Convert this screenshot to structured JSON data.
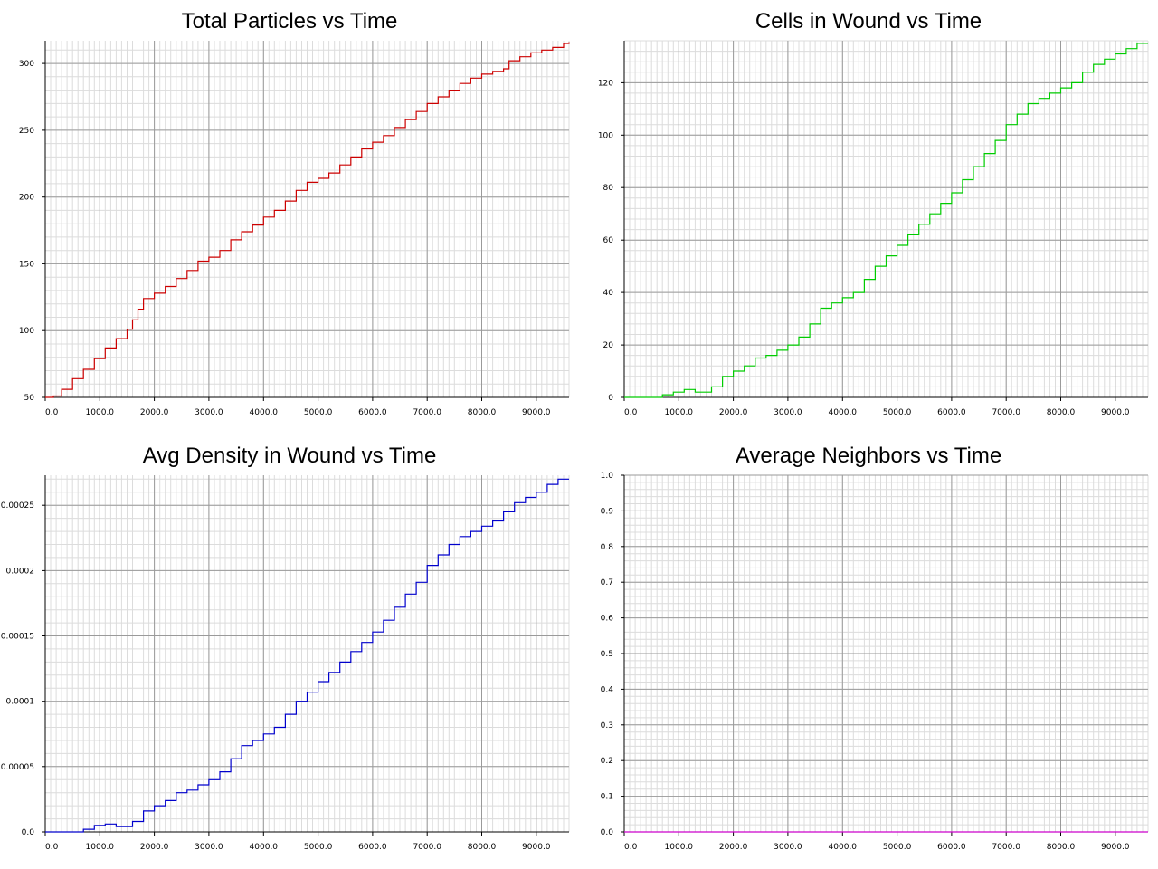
{
  "chart_data": [
    {
      "type": "line",
      "title": "Total Particles vs Time",
      "xlabel": "",
      "ylabel": "",
      "xlim": [
        0,
        9600
      ],
      "ylim": [
        50,
        317
      ],
      "x_ticks": [
        "0.0",
        "1000.0",
        "2000.0",
        "3000.0",
        "4000.0",
        "5000.0",
        "6000.0",
        "7000.0",
        "8000.0",
        "9000.0"
      ],
      "y_ticks": [
        "50",
        "100",
        "150",
        "200",
        "250",
        "300"
      ],
      "grid": true,
      "color": "#cc0000",
      "series": [
        {
          "x": [
            0,
            150,
            300,
            500,
            700,
            900,
            1100,
            1300,
            1500,
            1600,
            1700,
            1800,
            2000,
            2200,
            2400,
            2600,
            2800,
            3000,
            3200,
            3400,
            3600,
            3800,
            4000,
            4200,
            4400,
            4600,
            4800,
            5000,
            5200,
            5400,
            5600,
            5800,
            6000,
            6200,
            6400,
            6600,
            6800,
            7000,
            7200,
            7400,
            7600,
            7800,
            8000,
            8200,
            8400,
            8500,
            8700,
            8900,
            9100,
            9300,
            9500,
            9600
          ],
          "y": [
            50,
            51,
            56,
            64,
            71,
            79,
            87,
            94,
            101,
            108,
            116,
            124,
            128,
            133,
            139,
            145,
            152,
            155,
            160,
            168,
            174,
            179,
            185,
            190,
            197,
            205,
            211,
            214,
            218,
            224,
            230,
            236,
            241,
            246,
            252,
            258,
            264,
            270,
            275,
            280,
            285,
            289,
            292,
            294,
            296,
            302,
            305,
            308,
            310,
            312,
            315,
            316
          ]
        }
      ]
    },
    {
      "type": "line",
      "title": "Cells in Wound vs Time",
      "xlabel": "",
      "ylabel": "",
      "xlim": [
        0,
        9600
      ],
      "ylim": [
        0,
        136
      ],
      "x_ticks": [
        "0.0",
        "1000.0",
        "2000.0",
        "3000.0",
        "4000.0",
        "5000.0",
        "6000.0",
        "7000.0",
        "8000.0",
        "9000.0"
      ],
      "y_ticks": [
        "0",
        "20",
        "40",
        "60",
        "80",
        "100",
        "120"
      ],
      "grid": true,
      "color": "#00cc00",
      "series": [
        {
          "x": [
            0,
            400,
            700,
            900,
            1100,
            1300,
            1600,
            1800,
            2000,
            2200,
            2400,
            2600,
            2800,
            3000,
            3200,
            3400,
            3600,
            3800,
            4000,
            4200,
            4400,
            4600,
            4800,
            5000,
            5200,
            5400,
            5600,
            5800,
            6000,
            6200,
            6400,
            6600,
            6800,
            7000,
            7200,
            7400,
            7600,
            7800,
            8000,
            8200,
            8400,
            8600,
            8800,
            9000,
            9200,
            9400,
            9600
          ],
          "y": [
            0,
            0,
            1,
            2,
            3,
            2,
            4,
            8,
            10,
            12,
            15,
            16,
            18,
            20,
            23,
            28,
            34,
            36,
            38,
            40,
            45,
            50,
            54,
            58,
            62,
            66,
            70,
            74,
            78,
            83,
            88,
            93,
            98,
            104,
            108,
            112,
            114,
            116,
            118,
            120,
            124,
            127,
            129,
            131,
            133,
            135,
            135
          ]
        }
      ]
    },
    {
      "type": "line",
      "title": "Avg Density in Wound vs Time",
      "xlabel": "",
      "ylabel": "",
      "xlim": [
        0,
        9600
      ],
      "ylim": [
        0,
        0.000273
      ],
      "x_ticks": [
        "0.0",
        "1000.0",
        "2000.0",
        "3000.0",
        "4000.0",
        "5000.0",
        "6000.0",
        "7000.0",
        "8000.0",
        "9000.0"
      ],
      "y_ticks": [
        "0.0",
        "0.00005",
        "0.0001",
        "0.00015",
        "0.0002",
        "0.00025"
      ],
      "grid": true,
      "color": "#0000cc",
      "series": [
        {
          "x": [
            0,
            400,
            700,
            900,
            1100,
            1300,
            1600,
            1800,
            2000,
            2200,
            2400,
            2600,
            2800,
            3000,
            3200,
            3400,
            3600,
            3800,
            4000,
            4200,
            4400,
            4600,
            4800,
            5000,
            5200,
            5400,
            5600,
            5800,
            6000,
            6200,
            6400,
            6600,
            6800,
            7000,
            7200,
            7400,
            7600,
            7800,
            8000,
            8200,
            8400,
            8600,
            8800,
            9000,
            9200,
            9400,
            9600
          ],
          "y": [
            0,
            0,
            2e-06,
            5e-06,
            6e-06,
            4e-06,
            8e-06,
            1.6e-05,
            2e-05,
            2.4e-05,
            3e-05,
            3.2e-05,
            3.6e-05,
            4e-05,
            4.6e-05,
            5.6e-05,
            6.6e-05,
            7e-05,
            7.5e-05,
            8e-05,
            9e-05,
            0.0001,
            0.000107,
            0.000115,
            0.000122,
            0.00013,
            0.000138,
            0.000145,
            0.000153,
            0.000162,
            0.000172,
            0.000182,
            0.000191,
            0.000204,
            0.000212,
            0.00022,
            0.000226,
            0.00023,
            0.000234,
            0.000238,
            0.000245,
            0.000252,
            0.000256,
            0.00026,
            0.000266,
            0.00027,
            0.00027
          ]
        }
      ]
    },
    {
      "type": "line",
      "title": "Average Neighbors vs Time",
      "xlabel": "",
      "ylabel": "",
      "xlim": [
        0,
        9600
      ],
      "ylim": [
        0,
        1.0
      ],
      "x_ticks": [
        "0.0",
        "1000.0",
        "2000.0",
        "3000.0",
        "4000.0",
        "5000.0",
        "6000.0",
        "7000.0",
        "8000.0",
        "9000.0"
      ],
      "y_ticks": [
        "0.0",
        "0.1",
        "0.2",
        "0.3",
        "0.4",
        "0.5",
        "0.6",
        "0.7",
        "0.8",
        "0.9",
        "1.0"
      ],
      "grid": true,
      "color": "#cc00cc",
      "series": [
        {
          "x": [
            0,
            9600
          ],
          "y": [
            0,
            0
          ]
        }
      ]
    }
  ]
}
